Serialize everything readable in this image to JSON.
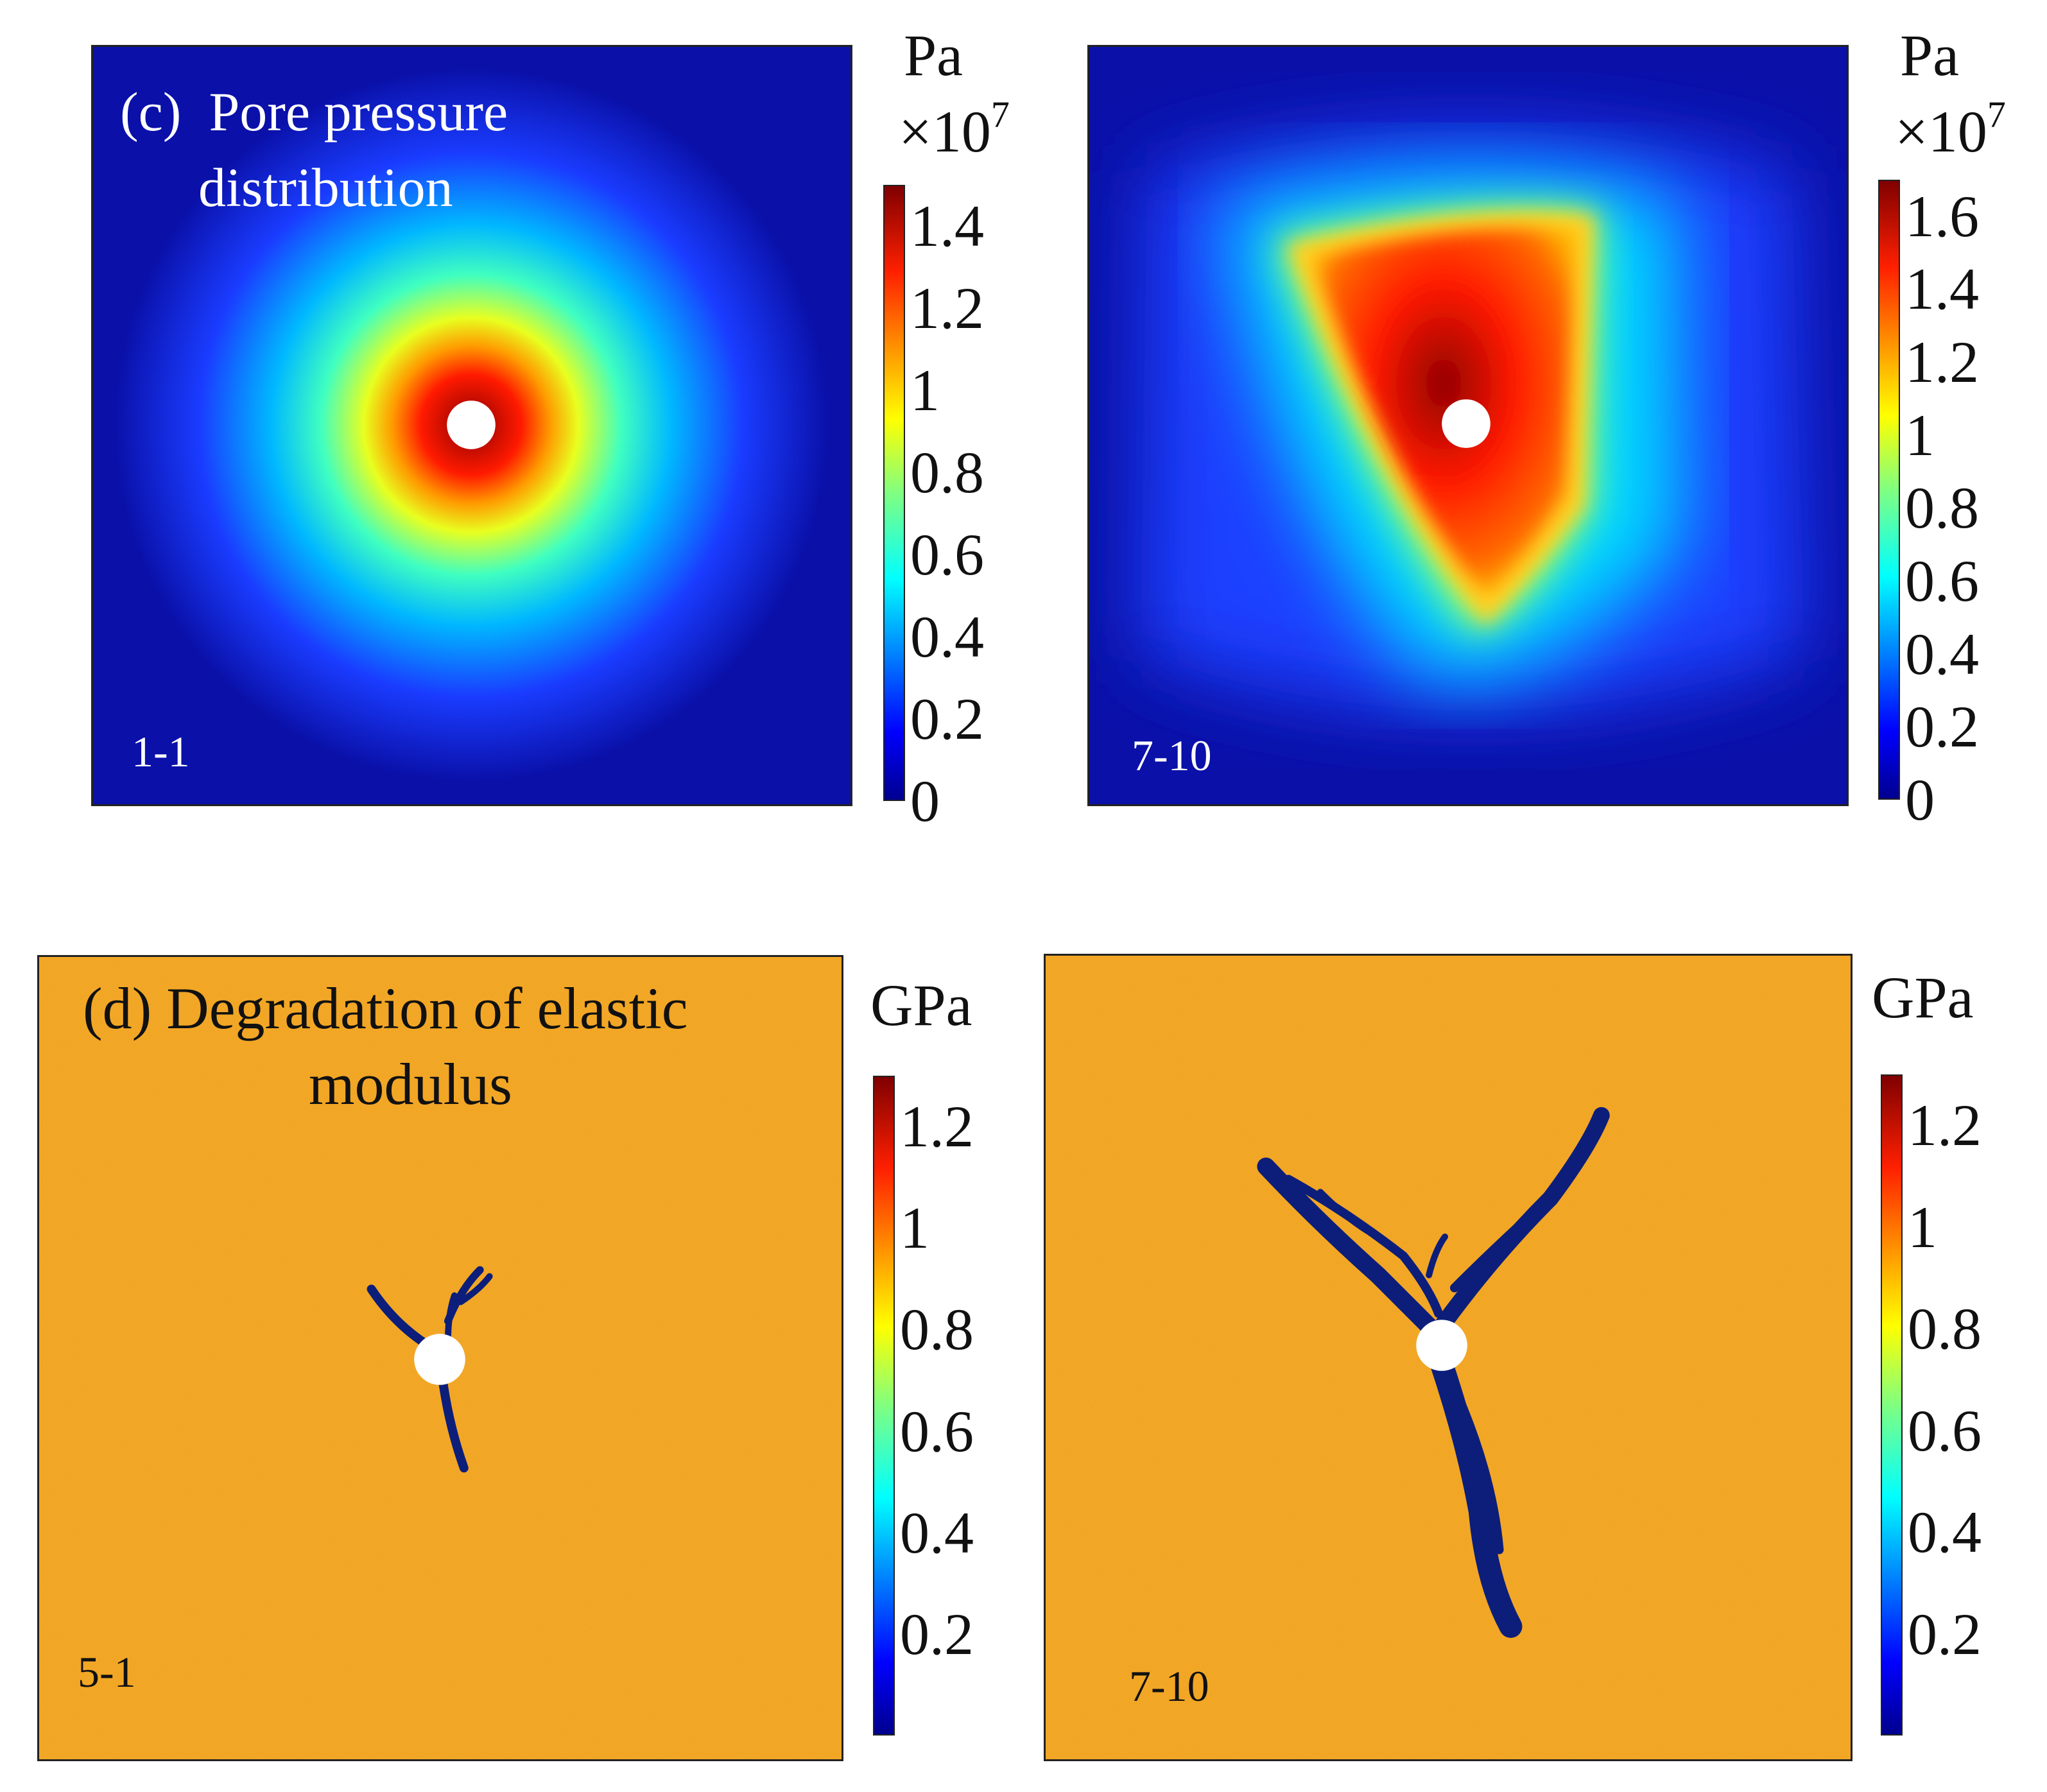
{
  "chart_data": [
    {
      "type": "heatmap",
      "panel_label": "(c)",
      "title_line1": "Pore pressure",
      "title_line2": "distribution",
      "case_label": "1-1",
      "colorbar": {
        "unit": "Pa",
        "scale_prefix": "×10",
        "scale_exp": "7",
        "ticks": [
          "1.4",
          "1.2",
          "1",
          "0.8",
          "0.6",
          "0.4",
          "0.2",
          "0"
        ],
        "range": [
          0,
          1.5
        ],
        "colormap": "jet"
      },
      "field_description": "radial pressure halo around injection hole"
    },
    {
      "type": "heatmap",
      "case_label": "7-10",
      "colorbar": {
        "unit": "Pa",
        "scale_prefix": "×10",
        "scale_exp": "7",
        "ticks": [
          "1.6",
          "1.4",
          "1.2",
          "1",
          "0.8",
          "0.6",
          "0.4",
          "0.2",
          "0"
        ],
        "range": [
          0,
          1.7
        ],
        "colormap": "jet"
      }
    },
    {
      "type": "heatmap",
      "panel_label": "(d)",
      "title_line1": "Degradation of elastic",
      "title_line2": "modulus",
      "case_label": "5-1",
      "colorbar": {
        "unit": "GPa",
        "ticks": [
          "1.2",
          "1",
          "0.8",
          "0.6",
          "0.4",
          "0.2"
        ],
        "range": [
          0,
          1.3
        ],
        "colormap": "jet"
      }
    },
    {
      "type": "heatmap",
      "case_label": "7-10",
      "colorbar": {
        "unit": "GPa",
        "ticks": [
          "1.2",
          "1",
          "0.8",
          "0.6",
          "0.4",
          "0.2"
        ],
        "range": [
          0,
          1.3
        ],
        "colormap": "jet"
      }
    }
  ],
  "colors": {
    "background_blue": "#0a10a8",
    "background_orange": "#f0a020",
    "crack": "#0c1e7a",
    "hole": "#ffffff"
  }
}
